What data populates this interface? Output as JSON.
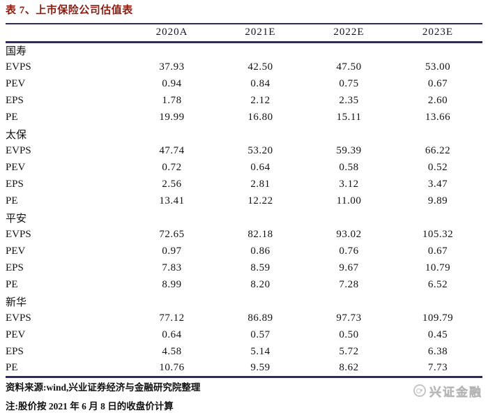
{
  "title": "表 7、上市保险公司估值表",
  "table": {
    "columns": [
      "",
      "2020A",
      "2021E",
      "2022E",
      "2023E"
    ],
    "companies": [
      {
        "name": "国寿",
        "rows": [
          {
            "label": "EVPS",
            "values": [
              "37.93",
              "42.50",
              "47.50",
              "53.00"
            ]
          },
          {
            "label": "PEV",
            "values": [
              "0.94",
              "0.84",
              "0.75",
              "0.67"
            ]
          },
          {
            "label": "EPS",
            "values": [
              "1.78",
              "2.12",
              "2.35",
              "2.60"
            ]
          },
          {
            "label": "PE",
            "values": [
              "19.99",
              "16.80",
              "15.11",
              "13.66"
            ]
          }
        ]
      },
      {
        "name": "太保",
        "rows": [
          {
            "label": "EVPS",
            "values": [
              "47.74",
              "53.20",
              "59.39",
              "66.22"
            ]
          },
          {
            "label": "PEV",
            "values": [
              "0.72",
              "0.64",
              "0.58",
              "0.52"
            ]
          },
          {
            "label": "EPS",
            "values": [
              "2.56",
              "2.81",
              "3.12",
              "3.47"
            ]
          },
          {
            "label": "PE",
            "values": [
              "13.41",
              "12.22",
              "11.00",
              "9.89"
            ]
          }
        ]
      },
      {
        "name": "平安",
        "rows": [
          {
            "label": "EVPS",
            "values": [
              "72.65",
              "82.18",
              "93.02",
              "105.32"
            ]
          },
          {
            "label": "PEV",
            "values": [
              "0.97",
              "0.86",
              "0.76",
              "0.67"
            ]
          },
          {
            "label": "EPS",
            "values": [
              "7.83",
              "8.59",
              "9.67",
              "10.79"
            ]
          },
          {
            "label": "PE",
            "values": [
              "8.99",
              "8.20",
              "7.28",
              "6.52"
            ]
          }
        ]
      },
      {
        "name": "新华",
        "rows": [
          {
            "label": "EVPS",
            "values": [
              "77.12",
              "86.89",
              "97.73",
              "109.79"
            ]
          },
          {
            "label": "PEV",
            "values": [
              "0.64",
              "0.57",
              "0.50",
              "0.45"
            ]
          },
          {
            "label": "EPS",
            "values": [
              "4.58",
              "5.14",
              "5.72",
              "6.38"
            ]
          },
          {
            "label": "PE",
            "values": [
              "10.76",
              "9.59",
              "8.62",
              "7.73"
            ]
          }
        ]
      }
    ]
  },
  "footer": {
    "source": "资料来源:wind,兴业证券经济与金融研究院整理",
    "note": "注:股价按 2021 年 6 月 8 日的收盘价计算",
    "brand_text": "兴证金融"
  },
  "colors": {
    "title_red": "#8a1c10",
    "rule_navy": "#2a2a66",
    "text_black": "#111111",
    "brand_gray": "#c9c9c9"
  }
}
